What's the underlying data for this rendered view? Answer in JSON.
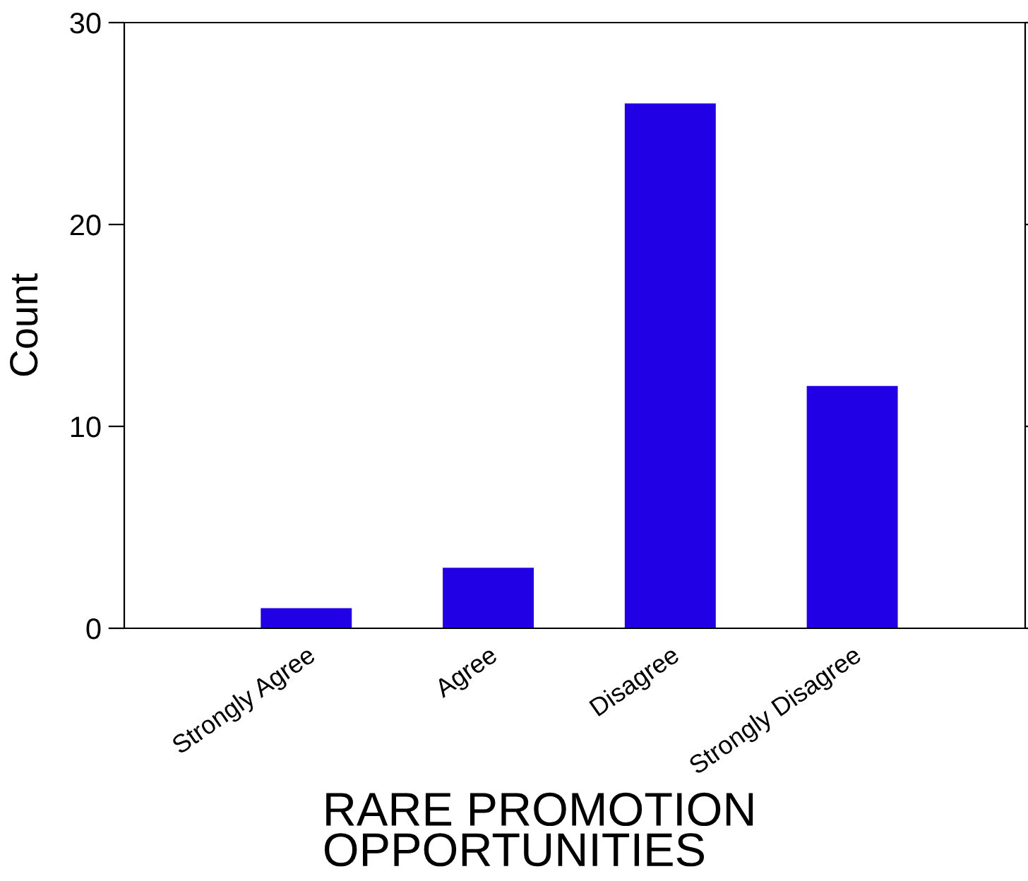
{
  "chart_data": {
    "type": "bar",
    "xlabel": "RARE PROMOTION\nOPPORTUNITIES",
    "ylabel": "Count",
    "categories": [
      "Strongly Agree",
      "Agree",
      "Disagree",
      "Strongly Disagree"
    ],
    "values": [
      1,
      3,
      26,
      12
    ],
    "color": "#2200e6",
    "ylim": [
      0,
      30
    ],
    "yticks": [
      0,
      10,
      20,
      30
    ],
    "grid": false,
    "legend": false
  }
}
